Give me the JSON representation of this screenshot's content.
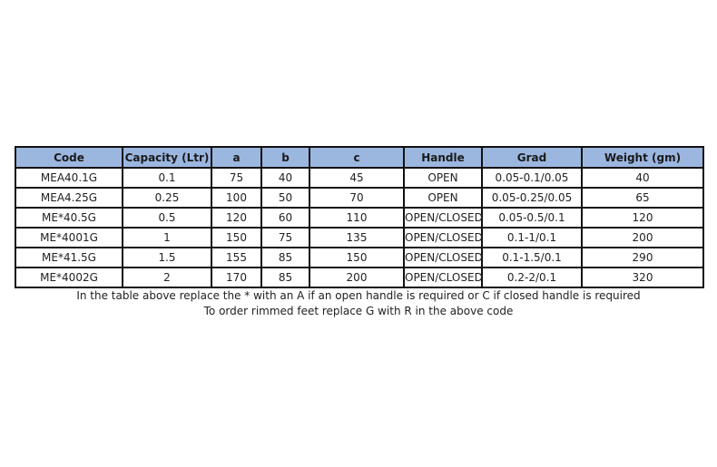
{
  "table": {
    "headers": [
      "Code",
      "Capacity (Ltr)",
      "a",
      "b",
      "c",
      "Handle",
      "Grad",
      "Weight (gm)"
    ],
    "rows": [
      [
        "MEA40.1G",
        "0.1",
        "75",
        "40",
        "45",
        "OPEN",
        "0.05-0.1/0.05",
        "40"
      ],
      [
        "MEA4.25G",
        "0.25",
        "100",
        "50",
        "70",
        "OPEN",
        "0.05-0.25/0.05",
        "65"
      ],
      [
        "ME*40.5G",
        "0.5",
        "120",
        "60",
        "110",
        "OPEN/CLOSED",
        "0.05-0.5/0.1",
        "120"
      ],
      [
        "ME*4001G",
        "1",
        "150",
        "75",
        "135",
        "OPEN/CLOSED",
        "0.1-1/0.1",
        "200"
      ],
      [
        "ME*41.5G",
        "1.5",
        "155",
        "85",
        "150",
        "OPEN/CLOSED",
        "0.1-1.5/0.1",
        "290"
      ],
      [
        "ME*4002G",
        "2",
        "170",
        "85",
        "200",
        "OPEN/CLOSED",
        "0.2-2/0.1",
        "320"
      ]
    ],
    "header_color": "#9bb7e0"
  },
  "notes": [
    "In the table above replace the * with an A if an open handle is required or C if closed handle is required",
    "To order rimmed feet replace G with R in the above code"
  ]
}
